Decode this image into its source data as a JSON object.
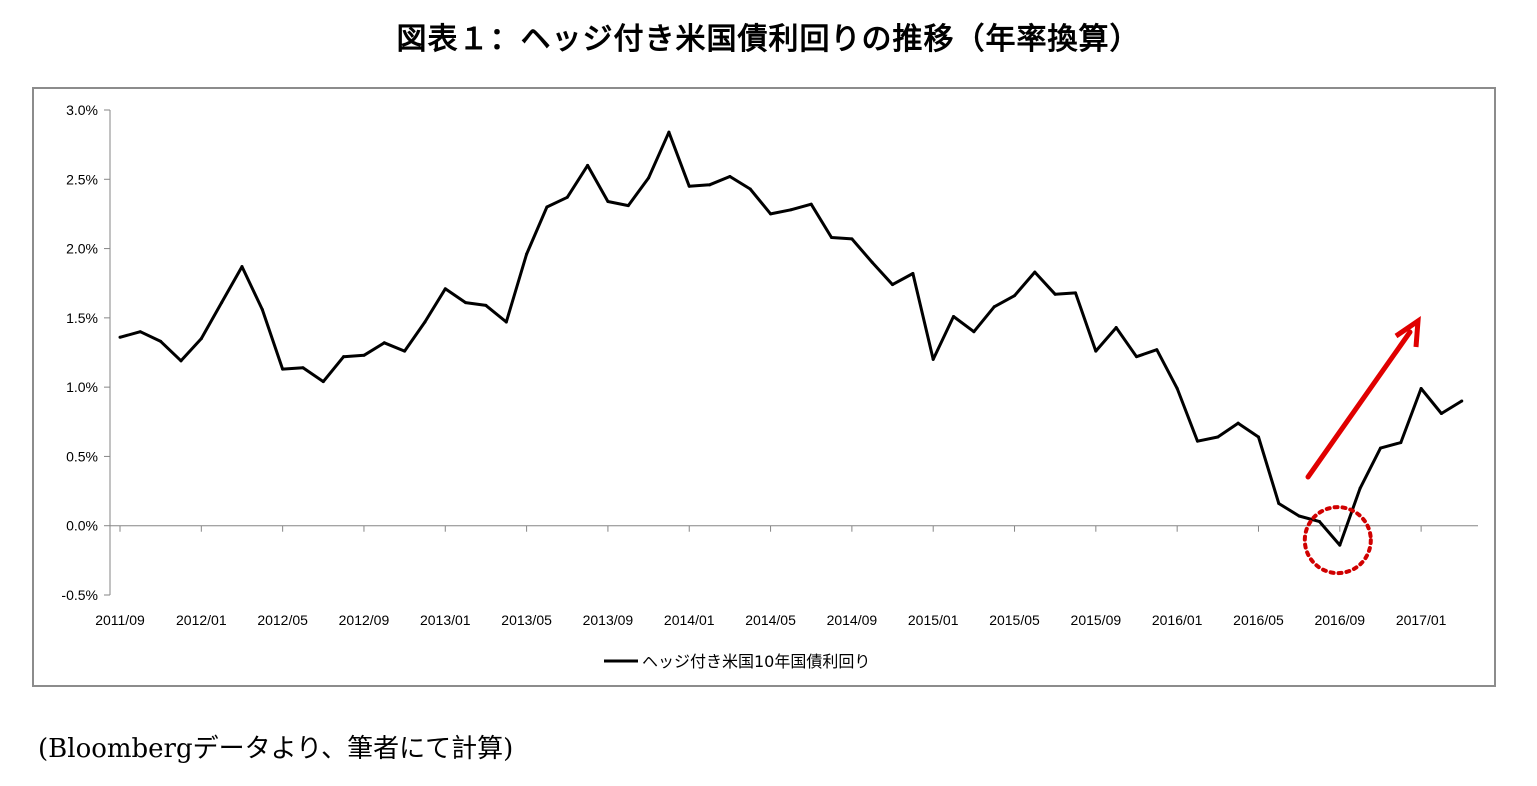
{
  "title": "図表１：ヘッジ付き米国債利回りの推移（年率換算）",
  "source_note": "(Bloombergデータより、筆者にて計算)",
  "chart_data": {
    "type": "line",
    "title": "図表１：ヘッジ付き米国債利回りの推移（年率換算）",
    "xlabel": "",
    "ylabel": "",
    "ylim": [
      -0.5,
      3.0
    ],
    "y_ticks": [
      "3.0%",
      "2.5%",
      "2.0%",
      "1.5%",
      "1.0%",
      "0.5%",
      "0.0%",
      "-0.5%"
    ],
    "y_tick_values": [
      3.0,
      2.5,
      2.0,
      1.5,
      1.0,
      0.5,
      0.0,
      -0.5
    ],
    "x_tick_labels": [
      "2011/09",
      "2012/01",
      "2012/05",
      "2012/09",
      "2013/01",
      "2013/05",
      "2013/09",
      "2014/01",
      "2014/05",
      "2014/09",
      "2015/01",
      "2015/05",
      "2015/09",
      "2016/01",
      "2016/05",
      "2016/09",
      "2017/01"
    ],
    "grid": false,
    "legend_position": "bottom",
    "x": [
      "2011/09",
      "2011/10",
      "2011/11",
      "2011/12",
      "2012/01",
      "2012/02",
      "2012/03",
      "2012/04",
      "2012/05",
      "2012/06",
      "2012/07",
      "2012/08",
      "2012/09",
      "2012/10",
      "2012/11",
      "2012/12",
      "2013/01",
      "2013/02",
      "2013/03",
      "2013/04",
      "2013/05",
      "2013/06",
      "2013/07",
      "2013/08",
      "2013/09",
      "2013/10",
      "2013/11",
      "2013/12",
      "2014/01",
      "2014/02",
      "2014/03",
      "2014/04",
      "2014/05",
      "2014/06",
      "2014/07",
      "2014/08",
      "2014/09",
      "2014/10",
      "2014/11",
      "2014/12",
      "2015/01",
      "2015/02",
      "2015/03",
      "2015/04",
      "2015/05",
      "2015/06",
      "2015/07",
      "2015/08",
      "2015/09",
      "2015/10",
      "2015/11",
      "2015/12",
      "2016/01",
      "2016/02",
      "2016/03",
      "2016/04",
      "2016/05",
      "2016/06",
      "2016/07",
      "2016/08",
      "2016/09",
      "2016/10",
      "2016/11",
      "2016/12",
      "2017/01",
      "2017/02",
      "2017/03"
    ],
    "series": [
      {
        "name": "ヘッジ付き米国10年国債利回り",
        "color": "#000000",
        "values": [
          1.36,
          1.4,
          1.33,
          1.19,
          1.35,
          1.61,
          1.87,
          1.56,
          1.13,
          1.14,
          1.04,
          1.22,
          1.23,
          1.32,
          1.26,
          1.47,
          1.71,
          1.61,
          1.59,
          1.47,
          1.96,
          2.3,
          2.37,
          2.6,
          2.34,
          2.31,
          2.51,
          2.84,
          2.45,
          2.46,
          2.52,
          2.43,
          2.25,
          2.28,
          2.32,
          2.08,
          2.07,
          1.9,
          1.74,
          1.82,
          1.2,
          1.51,
          1.4,
          1.58,
          1.66,
          1.83,
          1.67,
          1.68,
          1.26,
          1.43,
          1.22,
          1.27,
          0.99,
          0.61,
          0.64,
          0.74,
          0.64,
          0.16,
          0.07,
          0.03,
          -0.14,
          0.27,
          0.56,
          0.6,
          0.99,
          0.81,
          0.9
        ]
      }
    ],
    "annotations": [
      {
        "type": "dotted-circle",
        "color": "#d00000",
        "around": "2016/09"
      },
      {
        "type": "arrow",
        "color": "#e00000",
        "direction": "up-right"
      }
    ]
  }
}
